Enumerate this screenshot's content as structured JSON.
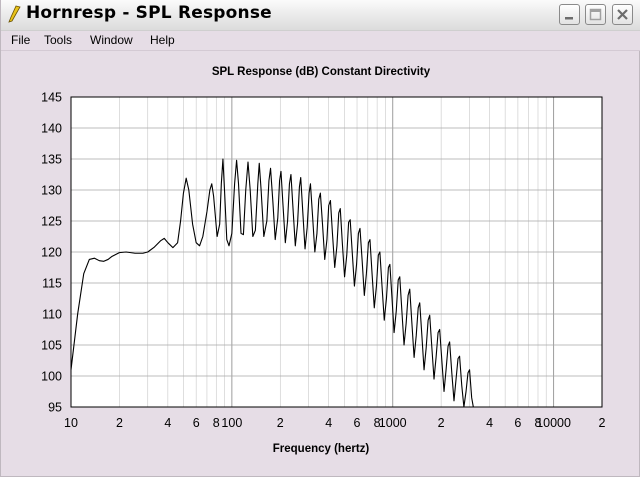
{
  "window": {
    "title": "Hornresp - SPL Response"
  },
  "menu": {
    "file": "File",
    "tools": "Tools",
    "window": "Window",
    "help": "Help"
  },
  "chart_data": {
    "type": "line",
    "title": "SPL Response (dB)   Constant Directivity",
    "xlabel": "Frequency (hertz)",
    "ylabel": "",
    "x_scale": "log",
    "xlim": [
      10,
      20000
    ],
    "ylim": [
      95,
      145
    ],
    "y_ticks": [
      95,
      100,
      105,
      110,
      115,
      120,
      125,
      130,
      135,
      140,
      145
    ],
    "x_tick_labels": [
      {
        "value": 10,
        "label": "10"
      },
      {
        "value": 20,
        "label": "2"
      },
      {
        "value": 40,
        "label": "4"
      },
      {
        "value": 60,
        "label": "6"
      },
      {
        "value": 80,
        "label": "8"
      },
      {
        "value": 100,
        "label": "100"
      },
      {
        "value": 200,
        "label": "2"
      },
      {
        "value": 400,
        "label": "4"
      },
      {
        "value": 600,
        "label": "6"
      },
      {
        "value": 800,
        "label": "8"
      },
      {
        "value": 1000,
        "label": "1000"
      },
      {
        "value": 2000,
        "label": "2"
      },
      {
        "value": 4000,
        "label": "4"
      },
      {
        "value": 6000,
        "label": "6"
      },
      {
        "value": 8000,
        "label": "8"
      },
      {
        "value": 10000,
        "label": "10000"
      },
      {
        "value": 20000,
        "label": "2"
      }
    ],
    "grid": true,
    "colors": {
      "line": "#000000",
      "grid": "#c8c8c8",
      "plot_bg": "#ffffff"
    },
    "series": [
      {
        "values": [
          [
            10,
            101
          ],
          [
            11,
            110
          ],
          [
            12,
            116.5
          ],
          [
            13,
            118.8
          ],
          [
            14,
            119
          ],
          [
            15,
            118.6
          ],
          [
            16,
            118.5
          ],
          [
            17,
            118.8
          ],
          [
            18,
            119.3
          ],
          [
            20,
            119.9
          ],
          [
            22,
            120
          ],
          [
            25,
            119.8
          ],
          [
            28,
            119.8
          ],
          [
            30,
            120
          ],
          [
            33,
            120.8
          ],
          [
            36,
            121.8
          ],
          [
            38,
            122.2
          ],
          [
            40,
            121.5
          ],
          [
            43,
            120.7
          ],
          [
            46,
            121.5
          ],
          [
            48,
            125
          ],
          [
            50,
            129.5
          ],
          [
            52,
            131.9
          ],
          [
            54,
            130
          ],
          [
            57,
            124.5
          ],
          [
            60,
            121.5
          ],
          [
            63,
            121
          ],
          [
            66,
            122.5
          ],
          [
            70,
            126.5
          ],
          [
            73,
            130
          ],
          [
            75,
            131
          ],
          [
            77,
            129
          ],
          [
            81,
            122.5
          ],
          [
            84,
            124.5
          ],
          [
            86,
            131
          ],
          [
            88,
            135
          ],
          [
            90,
            130
          ],
          [
            93,
            122
          ],
          [
            96,
            121
          ],
          [
            100,
            123
          ],
          [
            104,
            131
          ],
          [
            107,
            134.8
          ],
          [
            110,
            131
          ],
          [
            114,
            123
          ],
          [
            118,
            122.8
          ],
          [
            122,
            130
          ],
          [
            126,
            134.5
          ],
          [
            130,
            130
          ],
          [
            135,
            122.5
          ],
          [
            140,
            123.5
          ],
          [
            145,
            131
          ],
          [
            148,
            134.3
          ],
          [
            152,
            130
          ],
          [
            158,
            122.5
          ],
          [
            165,
            125
          ],
          [
            170,
            131.5
          ],
          [
            174,
            133.5
          ],
          [
            180,
            128
          ],
          [
            186,
            122
          ],
          [
            193,
            125.5
          ],
          [
            198,
            131.5
          ],
          [
            202,
            133
          ],
          [
            208,
            127.5
          ],
          [
            215,
            121.5
          ],
          [
            222,
            125
          ],
          [
            228,
            131
          ],
          [
            233,
            132.5
          ],
          [
            240,
            127
          ],
          [
            248,
            121
          ],
          [
            256,
            124.5
          ],
          [
            263,
            130.5
          ],
          [
            268,
            132
          ],
          [
            276,
            126.5
          ],
          [
            285,
            120.5
          ],
          [
            294,
            124
          ],
          [
            302,
            129.5
          ],
          [
            308,
            131
          ],
          [
            318,
            125.5
          ],
          [
            328,
            120
          ],
          [
            338,
            123
          ],
          [
            347,
            128.5
          ],
          [
            355,
            129.5
          ],
          [
            366,
            124.5
          ],
          [
            378,
            118.8
          ],
          [
            390,
            122
          ],
          [
            400,
            127.5
          ],
          [
            410,
            128.3
          ],
          [
            422,
            123
          ],
          [
            436,
            117.5
          ],
          [
            450,
            121
          ],
          [
            462,
            126.3
          ],
          [
            472,
            127
          ],
          [
            486,
            121.5
          ],
          [
            502,
            116
          ],
          [
            518,
            119.5
          ],
          [
            532,
            124.8
          ],
          [
            544,
            125.2
          ],
          [
            560,
            120
          ],
          [
            578,
            114.5
          ],
          [
            596,
            118
          ],
          [
            612,
            123
          ],
          [
            626,
            123.8
          ],
          [
            646,
            118.5
          ],
          [
            666,
            113
          ],
          [
            686,
            116.5
          ],
          [
            706,
            121.5
          ],
          [
            722,
            122
          ],
          [
            744,
            116.5
          ],
          [
            768,
            111
          ],
          [
            792,
            114.5
          ],
          [
            814,
            119.5
          ],
          [
            832,
            120
          ],
          [
            858,
            114.5
          ],
          [
            886,
            109
          ],
          [
            914,
            112.5
          ],
          [
            940,
            117.5
          ],
          [
            960,
            118
          ],
          [
            990,
            112.5
          ],
          [
            1020,
            107
          ],
          [
            1052,
            110.5
          ],
          [
            1082,
            115.5
          ],
          [
            1106,
            116
          ],
          [
            1140,
            110.5
          ],
          [
            1176,
            105
          ],
          [
            1212,
            108.5
          ],
          [
            1246,
            113
          ],
          [
            1276,
            114
          ],
          [
            1316,
            108.5
          ],
          [
            1358,
            103
          ],
          [
            1400,
            106.5
          ],
          [
            1440,
            111
          ],
          [
            1472,
            111.8
          ],
          [
            1518,
            106.5
          ],
          [
            1566,
            101
          ],
          [
            1614,
            104.5
          ],
          [
            1660,
            109
          ],
          [
            1698,
            109.8
          ],
          [
            1752,
            104.5
          ],
          [
            1806,
            99.5
          ],
          [
            1860,
            103
          ],
          [
            1914,
            107
          ],
          [
            1958,
            107.5
          ],
          [
            2020,
            102.5
          ],
          [
            2084,
            97.5
          ],
          [
            2146,
            101
          ],
          [
            2208,
            104.8
          ],
          [
            2258,
            105.5
          ],
          [
            2330,
            100.5
          ],
          [
            2404,
            96
          ],
          [
            2476,
            99.5
          ],
          [
            2546,
            102.8
          ],
          [
            2604,
            103.2
          ],
          [
            2686,
            98.5
          ],
          [
            2770,
            95
          ],
          [
            2856,
            97.5
          ],
          [
            2936,
            100.5
          ],
          [
            3004,
            101
          ],
          [
            3096,
            96.5
          ],
          [
            3170,
            95
          ]
        ]
      }
    ]
  }
}
